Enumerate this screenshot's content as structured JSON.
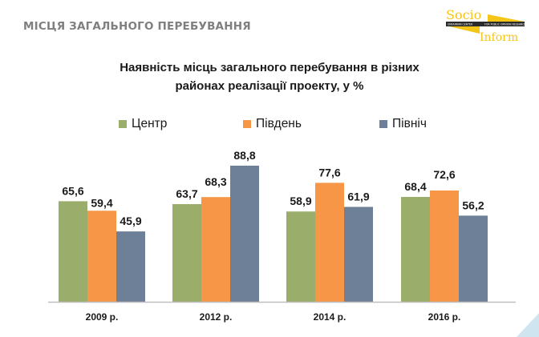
{
  "header": {
    "section_title": "МІСЦЯ ЗАГАЛЬНОГО ПЕРЕБУВАННЯ",
    "logo": {
      "line1": "Socio",
      "line2": "Inform",
      "tagline_left": "UKRAINIAN CENTER",
      "tagline_right": "FOR PUBLIC OPINION RESEARCH"
    }
  },
  "chart_data": {
    "type": "bar",
    "title_line1": "Наявність місць загального перебування в різних",
    "title_line2": "районах реалізації проекту, у %",
    "categories": [
      "2009 р.",
      "2012 р.",
      "2014 р.",
      "2016 р."
    ],
    "series": [
      {
        "name": "Центр",
        "color": "#9bad6b",
        "values": [
          65.6,
          63.7,
          58.9,
          68.4
        ],
        "labels": [
          "65,6",
          "63,7",
          "58,9",
          "68,4"
        ]
      },
      {
        "name": "Південь",
        "color": "#f79646",
        "values": [
          59.4,
          68.3,
          77.6,
          72.6
        ],
        "labels": [
          "59,4",
          "68,3",
          "77,6",
          "72,6"
        ]
      },
      {
        "name": "Північ",
        "color": "#6e8097",
        "values": [
          45.9,
          88.8,
          61.9,
          56.2
        ],
        "labels": [
          "45,9",
          "88,8",
          "61,9",
          "56,2"
        ]
      }
    ],
    "xlabel": "",
    "ylabel": "",
    "ylim": [
      0,
      100
    ],
    "grid": false,
    "legend_position": "top"
  }
}
